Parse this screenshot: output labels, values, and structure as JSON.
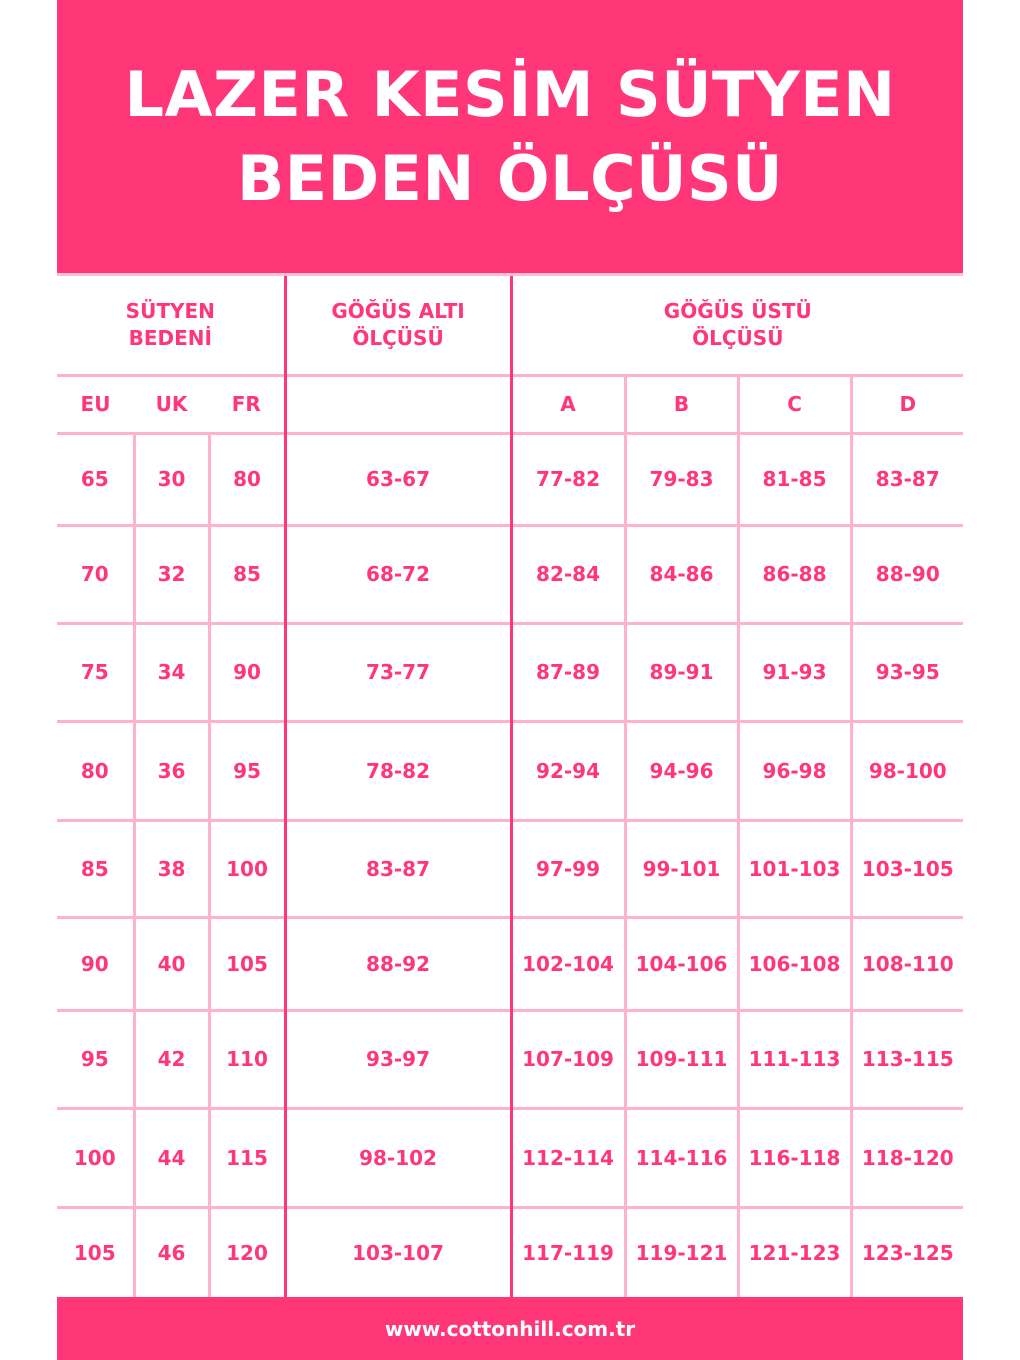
{
  "title": {
    "line1": "LAZER KESİM SÜTYEN",
    "line2": "BEDEN ÖLÇÜSÜ"
  },
  "headers": {
    "bra_size": "SÜTYEN BEDENİ",
    "underbust": "GÖĞÜS ALTI ÖLÇÜSÜ",
    "overbust": "GÖĞÜS ÜSTÜ ÖLÇÜSÜ",
    "sub": [
      "EU",
      "UK",
      "FR",
      "",
      "A",
      "B",
      "C",
      "D"
    ]
  },
  "rows": [
    [
      "65",
      "30",
      "80",
      "63-67",
      "77-82",
      "79-83",
      "81-85",
      "83-87"
    ],
    [
      "70",
      "32",
      "85",
      "68-72",
      "82-84",
      "84-86",
      "86-88",
      "88-90"
    ],
    [
      "75",
      "34",
      "90",
      "73-77",
      "87-89",
      "89-91",
      "91-93",
      "93-95"
    ],
    [
      "80",
      "36",
      "95",
      "78-82",
      "92-94",
      "94-96",
      "96-98",
      "98-100"
    ],
    [
      "85",
      "38",
      "100",
      "83-87",
      "97-99",
      "99-101",
      "101-103",
      "103-105"
    ],
    [
      "90",
      "40",
      "105",
      "88-92",
      "102-104",
      "104-106",
      "106-108",
      "108-110"
    ],
    [
      "95",
      "42",
      "110",
      "93-97",
      "107-109",
      "109-111",
      "111-113",
      "113-115"
    ],
    [
      "100",
      "44",
      "115",
      "98-102",
      "112-114",
      "114-116",
      "116-118",
      "118-120"
    ],
    [
      "105",
      "46",
      "120",
      "103-107",
      "117-119",
      "119-121",
      "121-123",
      "123-125"
    ]
  ],
  "footer": {
    "website": "www.cottonhill.com.tr"
  },
  "colors": {
    "brand": "#ff3779",
    "grid": "#ffb3c8"
  }
}
